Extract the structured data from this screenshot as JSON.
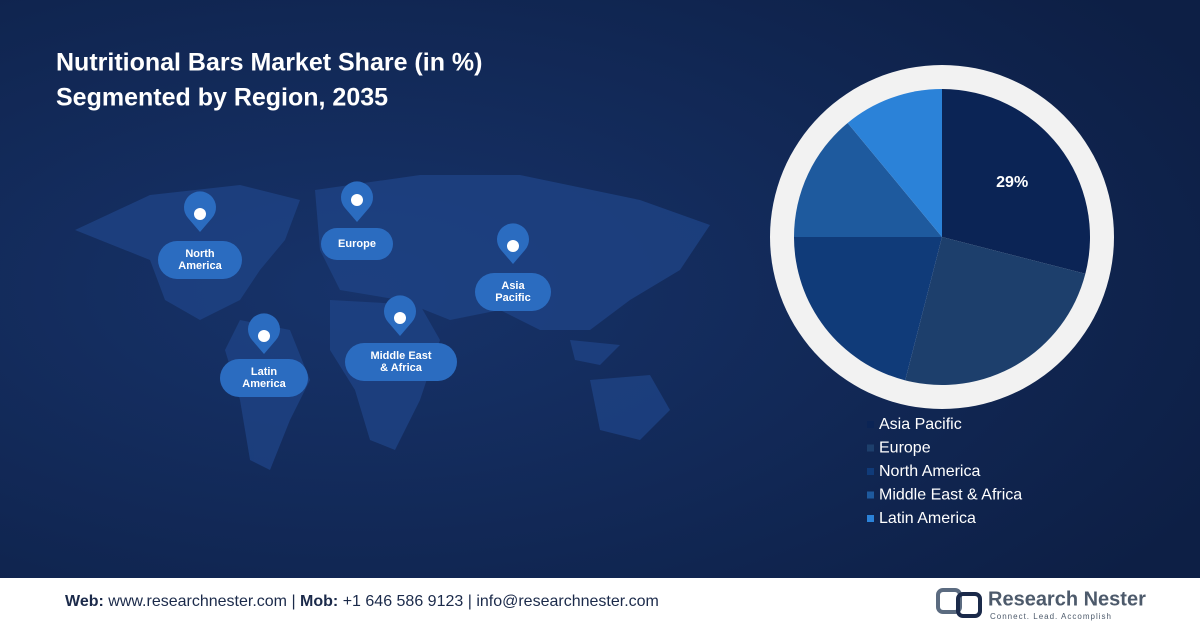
{
  "chart_data": {
    "type": "pie",
    "title_lines": [
      "Nutritional Bars Market Share (in %)",
      "Segmented by Region, 2035"
    ],
    "categories": [
      "Asia Pacific",
      "Europe",
      "North America",
      "Middle East & Africa",
      "Latin America"
    ],
    "values": [
      29,
      25,
      21,
      14,
      11
    ],
    "value_labels": [
      "29%",
      null,
      null,
      null,
      null
    ],
    "colors": [
      "#0b2455",
      "#1d3f6c",
      "#103b79",
      "#1e5a9e",
      "#2b82d8"
    ]
  },
  "map_labels": [
    [
      "North",
      "America"
    ],
    [
      "Europe"
    ],
    [
      "Asia",
      "Pacific"
    ],
    [
      "Latin",
      "America"
    ],
    [
      "Middle East",
      "& Africa"
    ]
  ],
  "footer": {
    "web_label": "Web:",
    "web": "www.researchnester.com",
    "mob_label": "Mob:",
    "mob": "+1 646 586 9123",
    "email": "info@researchnester.com",
    "brand": "Research Nester",
    "tagline": "Connect. Lead. Accomplish"
  }
}
